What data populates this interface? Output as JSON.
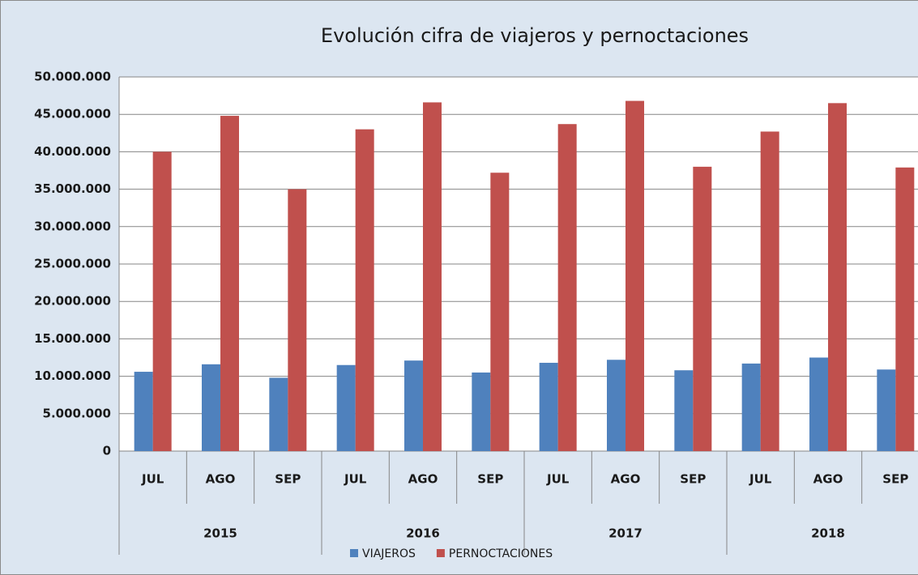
{
  "chart_data": {
    "type": "bar",
    "title": "Evolución cifra de viajeros y pernoctaciones",
    "categories": [
      "JUL",
      "AGO",
      "SEP",
      "JUL",
      "AGO",
      "SEP",
      "JUL",
      "AGO",
      "SEP",
      "JUL",
      "AGO",
      "SEP"
    ],
    "groups": [
      "2015",
      "2016",
      "2017",
      "2018"
    ],
    "series": [
      {
        "name": "VIAJEROS",
        "color": "#4f81bd",
        "values": [
          10600000,
          11600000,
          9800000,
          11500000,
          12100000,
          10500000,
          11800000,
          12200000,
          10800000,
          11700000,
          12500000,
          10900000
        ]
      },
      {
        "name": "PERNOCTACIONES",
        "color": "#c0504d",
        "values": [
          40000000,
          44800000,
          35000000,
          43000000,
          46600000,
          37200000,
          43700000,
          46800000,
          38000000,
          42700000,
          46500000,
          37900000
        ]
      }
    ],
    "ylim": [
      0,
      50000000
    ],
    "yticks": [
      0,
      {
        "value": 5000000,
        "label": "5.000.000"
      },
      {
        "value": 10000000,
        "label": "10.000.000"
      },
      {
        "value": 15000000,
        "label": "15.000.000"
      },
      {
        "value": 20000000,
        "label": "20.000.000"
      },
      {
        "value": 25000000,
        "label": "25.000.000"
      },
      {
        "value": 30000000,
        "label": "30.000.000"
      },
      {
        "value": 35000000,
        "label": "35.000.000"
      },
      {
        "value": 40000000,
        "label": "40.000.000"
      },
      {
        "value": 45000000,
        "label": "45.000.000"
      },
      {
        "value": 50000000,
        "label": "50.000.000"
      }
    ],
    "grid": true,
    "legend": "bottom"
  }
}
